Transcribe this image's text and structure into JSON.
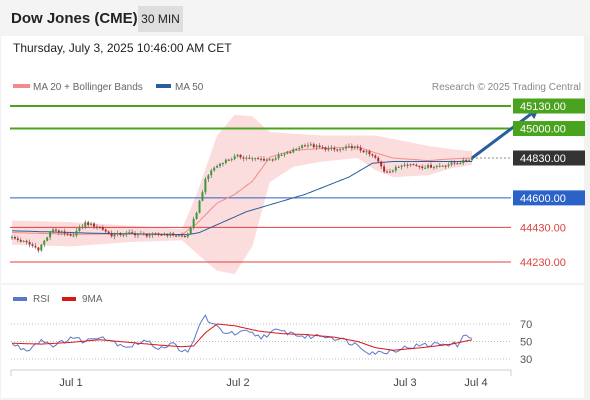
{
  "header": {
    "instrument": "Dow Jones (CME)",
    "timeframe": "30 MIN",
    "timestamp": "Thursday, July 3, 2025 10:46:00 AM CET"
  },
  "chart_data": [
    {
      "type": "candlestick",
      "legend": [
        {
          "name": "MA 20 + Bollinger Bands",
          "color": "#f08c8c"
        },
        {
          "name": "MA 50",
          "color": "#2a5d9c"
        }
      ],
      "credit": "Research © 2025 Trading Central",
      "x_ticks": [
        "Jul 1",
        "Jul 2",
        "Jul 3",
        "Jul 4"
      ],
      "ylim": [
        44100,
        45220
      ],
      "n_bars": 158,
      "current_price": {
        "value": 44830,
        "label": "44830.00",
        "color": "#333333"
      },
      "levels": [
        {
          "value": 45130,
          "label": "45130.00",
          "kind": "resistance",
          "color": "#4aa31e"
        },
        {
          "value": 45000,
          "label": "45000.00",
          "kind": "resistance",
          "color": "#4aa31e"
        },
        {
          "value": 44600,
          "label": "44600.00",
          "kind": "pivot",
          "color": "#2a62c8"
        },
        {
          "value": 44430,
          "label": "44430.00",
          "kind": "support",
          "color": "#e04040"
        },
        {
          "value": 44230,
          "label": "44230.00",
          "kind": "support",
          "color": "#e04040"
        }
      ],
      "forecast_arrow": {
        "from_bar": 157,
        "from_value": 44830,
        "to_bar": 180,
        "to_value": 45120,
        "color": "#2a5d9c"
      },
      "price_path": [
        [
          0,
          44370
        ],
        [
          5,
          44340
        ],
        [
          9,
          44305
        ],
        [
          14,
          44420
        ],
        [
          20,
          44375
        ],
        [
          25,
          44455
        ],
        [
          30,
          44430
        ],
        [
          34,
          44385
        ],
        [
          40,
          44395
        ],
        [
          46,
          44385
        ],
        [
          52,
          44390
        ],
        [
          56,
          44385
        ],
        [
          59,
          44375
        ],
        [
          61,
          44420
        ],
        [
          63,
          44520
        ],
        [
          66,
          44700
        ],
        [
          68,
          44760
        ],
        [
          72,
          44810
        ],
        [
          77,
          44840
        ],
        [
          82,
          44825
        ],
        [
          88,
          44820
        ],
        [
          95,
          44865
        ],
        [
          100,
          44910
        ],
        [
          105,
          44890
        ],
        [
          111,
          44875
        ],
        [
          116,
          44895
        ],
        [
          120,
          44870
        ],
        [
          124,
          44830
        ],
        [
          127,
          44755
        ],
        [
          130,
          44760
        ],
        [
          134,
          44800
        ],
        [
          140,
          44780
        ],
        [
          146,
          44785
        ],
        [
          151,
          44800
        ],
        [
          154,
          44810
        ],
        [
          157,
          44830
        ]
      ],
      "ma50_path": [
        [
          0,
          44410
        ],
        [
          30,
          44395
        ],
        [
          60,
          44388
        ],
        [
          64,
          44400
        ],
        [
          80,
          44520
        ],
        [
          100,
          44620
        ],
        [
          115,
          44720
        ],
        [
          123,
          44800
        ],
        [
          130,
          44810
        ],
        [
          140,
          44810
        ],
        [
          157,
          44810
        ]
      ],
      "bollinger_band": [
        [
          0,
          44330,
          44470
        ],
        [
          20,
          44320,
          44460
        ],
        [
          40,
          44345,
          44440
        ],
        [
          58,
          44355,
          44420
        ],
        [
          63,
          44280,
          44620
        ],
        [
          70,
          44180,
          44960
        ],
        [
          76,
          44160,
          45080
        ],
        [
          82,
          44320,
          45070
        ],
        [
          88,
          44690,
          44980
        ],
        [
          96,
          44780,
          44970
        ],
        [
          106,
          44810,
          44960
        ],
        [
          118,
          44830,
          44960
        ],
        [
          124,
          44760,
          44960
        ],
        [
          130,
          44720,
          44940
        ],
        [
          142,
          44730,
          44900
        ],
        [
          150,
          44770,
          44880
        ],
        [
          157,
          44790,
          44870
        ]
      ]
    },
    {
      "type": "line",
      "series": [
        {
          "name": "RSI",
          "color": "#5a78c8"
        },
        {
          "name": "9MA",
          "color": "#d81818"
        }
      ],
      "ylim": [
        20,
        85
      ],
      "y_ticks": [
        70,
        50,
        30
      ],
      "reference_lines": [
        70,
        50,
        30
      ],
      "rsi_path": [
        [
          0,
          47
        ],
        [
          5,
          40
        ],
        [
          10,
          52
        ],
        [
          15,
          45
        ],
        [
          20,
          55
        ],
        [
          25,
          50
        ],
        [
          30,
          57
        ],
        [
          35,
          49
        ],
        [
          40,
          44
        ],
        [
          45,
          51
        ],
        [
          50,
          43
        ],
        [
          55,
          47
        ],
        [
          60,
          36
        ],
        [
          62,
          50
        ],
        [
          64,
          70
        ],
        [
          66,
          79
        ],
        [
          68,
          70
        ],
        [
          72,
          62
        ],
        [
          76,
          58
        ],
        [
          80,
          61
        ],
        [
          85,
          55
        ],
        [
          90,
          62
        ],
        [
          95,
          60
        ],
        [
          100,
          55
        ],
        [
          106,
          57
        ],
        [
          112,
          53
        ],
        [
          118,
          46
        ],
        [
          122,
          38
        ],
        [
          126,
          37
        ],
        [
          130,
          40
        ],
        [
          136,
          44
        ],
        [
          142,
          46
        ],
        [
          148,
          48
        ],
        [
          152,
          46
        ],
        [
          155,
          58
        ],
        [
          157,
          56
        ]
      ],
      "ma9_path": [
        [
          0,
          48
        ],
        [
          10,
          47
        ],
        [
          20,
          49
        ],
        [
          30,
          52
        ],
        [
          40,
          49
        ],
        [
          50,
          46
        ],
        [
          58,
          44
        ],
        [
          62,
          45
        ],
        [
          66,
          60
        ],
        [
          70,
          70
        ],
        [
          76,
          68
        ],
        [
          84,
          62
        ],
        [
          92,
          59
        ],
        [
          100,
          58
        ],
        [
          110,
          55
        ],
        [
          118,
          50
        ],
        [
          124,
          43
        ],
        [
          130,
          40
        ],
        [
          140,
          43
        ],
        [
          150,
          47
        ],
        [
          157,
          52
        ]
      ]
    }
  ]
}
